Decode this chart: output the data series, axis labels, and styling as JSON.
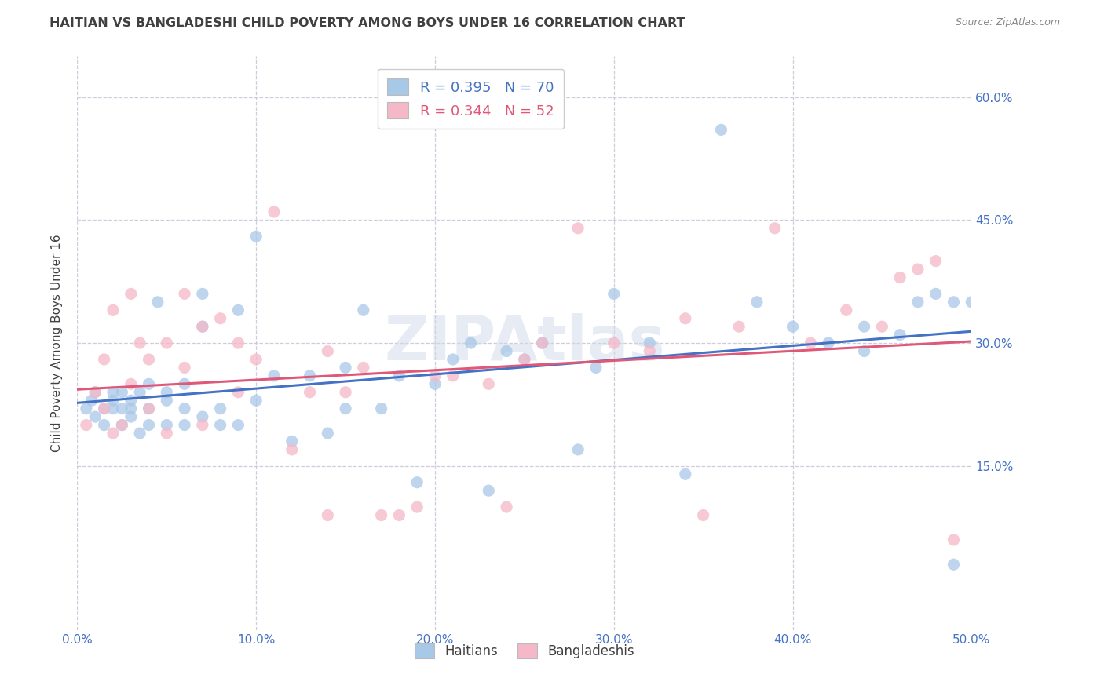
{
  "title": "HAITIAN VS BANGLADESHI CHILD POVERTY AMONG BOYS UNDER 16 CORRELATION CHART",
  "source": "Source: ZipAtlas.com",
  "ylabel": "Child Poverty Among Boys Under 16",
  "haitian_R": "0.395",
  "haitian_N": "70",
  "bangladeshi_R": "0.344",
  "bangladeshi_N": "52",
  "legend_labels": [
    "Haitians",
    "Bangladeshis"
  ],
  "haitian_color": "#a8c8e8",
  "bangladeshi_color": "#f4b8c8",
  "haitian_line_color": "#4472c4",
  "bangladeshi_line_color": "#e05878",
  "watermark": "ZIPAtlas",
  "background_color": "#ffffff",
  "grid_color": "#c8c8d8",
  "title_color": "#404040",
  "source_color": "#888888",
  "tick_color": "#4472c4",
  "xlim": [
    0.0,
    0.5
  ],
  "ylim": [
    -0.05,
    0.65
  ],
  "xtick_vals": [
    0.0,
    0.1,
    0.2,
    0.3,
    0.4,
    0.5
  ],
  "ytick_vals": [
    0.15,
    0.3,
    0.45,
    0.6
  ],
  "haitian_x": [
    0.005,
    0.008,
    0.01,
    0.01,
    0.015,
    0.015,
    0.02,
    0.02,
    0.02,
    0.025,
    0.025,
    0.025,
    0.03,
    0.03,
    0.03,
    0.035,
    0.035,
    0.04,
    0.04,
    0.04,
    0.045,
    0.05,
    0.05,
    0.05,
    0.06,
    0.06,
    0.06,
    0.07,
    0.07,
    0.07,
    0.08,
    0.08,
    0.09,
    0.09,
    0.1,
    0.1,
    0.11,
    0.12,
    0.13,
    0.14,
    0.15,
    0.15,
    0.16,
    0.17,
    0.18,
    0.19,
    0.2,
    0.21,
    0.22,
    0.23,
    0.24,
    0.25,
    0.26,
    0.28,
    0.29,
    0.3,
    0.32,
    0.34,
    0.36,
    0.38,
    0.4,
    0.42,
    0.44,
    0.44,
    0.46,
    0.47,
    0.48,
    0.49,
    0.49,
    0.5
  ],
  "haitian_y": [
    0.22,
    0.23,
    0.21,
    0.24,
    0.2,
    0.22,
    0.22,
    0.23,
    0.24,
    0.2,
    0.22,
    0.24,
    0.21,
    0.22,
    0.23,
    0.19,
    0.24,
    0.2,
    0.22,
    0.25,
    0.35,
    0.2,
    0.23,
    0.24,
    0.2,
    0.22,
    0.25,
    0.21,
    0.32,
    0.36,
    0.2,
    0.22,
    0.34,
    0.2,
    0.23,
    0.43,
    0.26,
    0.18,
    0.26,
    0.19,
    0.22,
    0.27,
    0.34,
    0.22,
    0.26,
    0.13,
    0.25,
    0.28,
    0.3,
    0.12,
    0.29,
    0.28,
    0.3,
    0.17,
    0.27,
    0.36,
    0.3,
    0.14,
    0.56,
    0.35,
    0.32,
    0.3,
    0.32,
    0.29,
    0.31,
    0.35,
    0.36,
    0.35,
    0.03,
    0.35
  ],
  "bangladeshi_x": [
    0.005,
    0.01,
    0.015,
    0.015,
    0.02,
    0.02,
    0.025,
    0.03,
    0.03,
    0.035,
    0.04,
    0.04,
    0.05,
    0.05,
    0.06,
    0.06,
    0.07,
    0.07,
    0.08,
    0.09,
    0.09,
    0.1,
    0.11,
    0.12,
    0.13,
    0.14,
    0.14,
    0.15,
    0.16,
    0.17,
    0.18,
    0.19,
    0.2,
    0.21,
    0.23,
    0.24,
    0.25,
    0.26,
    0.28,
    0.3,
    0.32,
    0.34,
    0.35,
    0.37,
    0.39,
    0.41,
    0.43,
    0.45,
    0.46,
    0.47,
    0.48,
    0.49
  ],
  "bangladeshi_y": [
    0.2,
    0.24,
    0.22,
    0.28,
    0.19,
    0.34,
    0.2,
    0.25,
    0.36,
    0.3,
    0.22,
    0.28,
    0.19,
    0.3,
    0.27,
    0.36,
    0.2,
    0.32,
    0.33,
    0.24,
    0.3,
    0.28,
    0.46,
    0.17,
    0.24,
    0.09,
    0.29,
    0.24,
    0.27,
    0.09,
    0.09,
    0.1,
    0.26,
    0.26,
    0.25,
    0.1,
    0.28,
    0.3,
    0.44,
    0.3,
    0.29,
    0.33,
    0.09,
    0.32,
    0.44,
    0.3,
    0.34,
    0.32,
    0.38,
    0.39,
    0.4,
    0.06
  ]
}
